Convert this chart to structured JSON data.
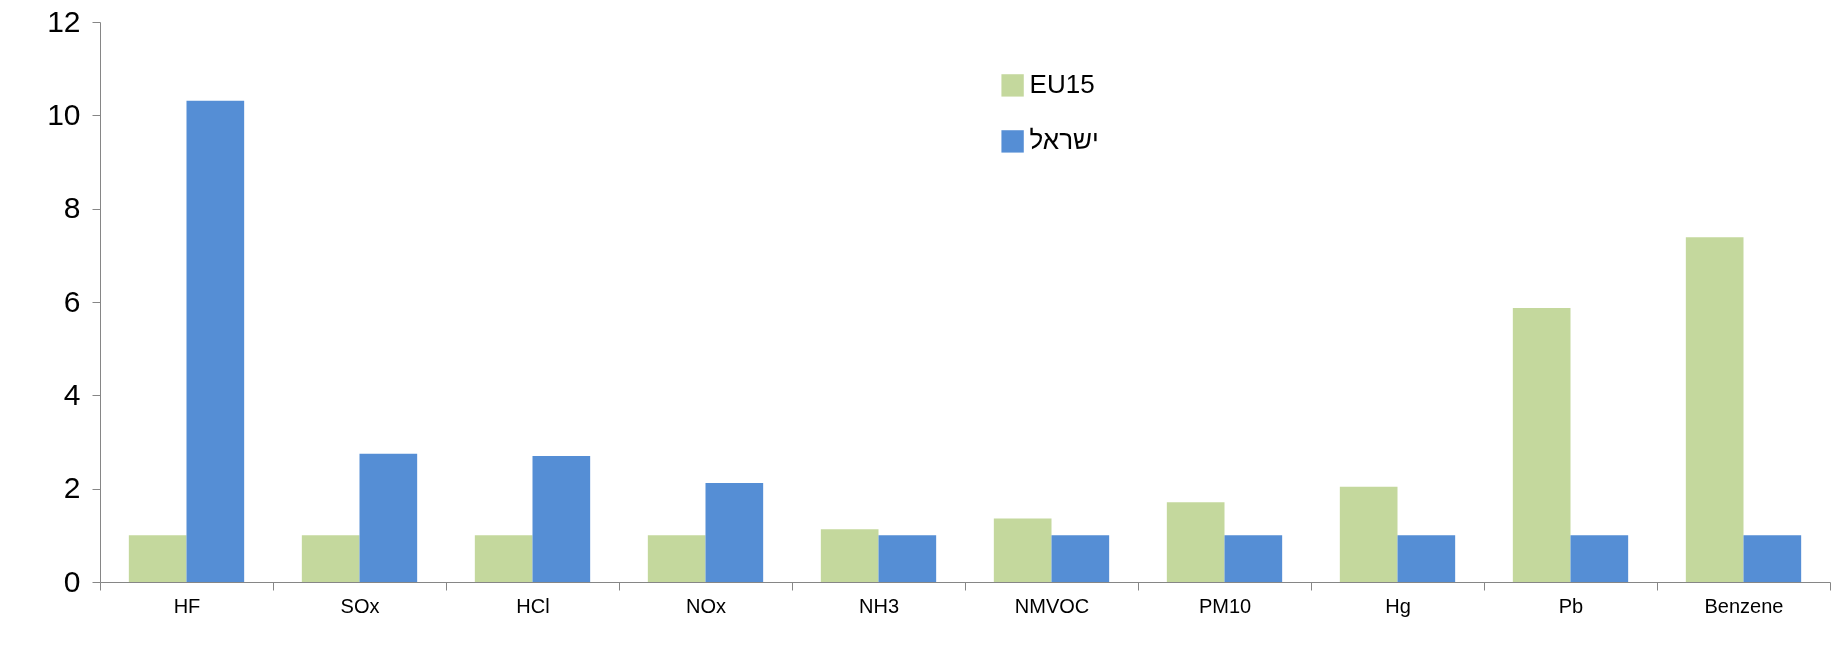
{
  "chart_data": {
    "type": "bar",
    "categories": [
      "HF",
      "SOx",
      "HCl",
      "NOx",
      "NH3",
      "NMVOC",
      "PM10",
      "Hg",
      "Pb",
      "Benzene"
    ],
    "series": [
      {
        "name": "EU15",
        "color": "#c4d89d",
        "values": [
          1,
          1,
          1,
          1,
          1.13,
          1.36,
          1.71,
          2.04,
          5.87,
          7.39
        ]
      },
      {
        "name": "ישראל",
        "color": "#558ed5",
        "values": [
          10.31,
          2.75,
          2.7,
          2.12,
          1,
          1,
          1,
          1,
          1,
          1
        ]
      }
    ],
    "ylim": [
      0,
      12
    ],
    "yticks": [
      0,
      2,
      4,
      6,
      8,
      10,
      12
    ],
    "grid": false,
    "legend": "top"
  }
}
